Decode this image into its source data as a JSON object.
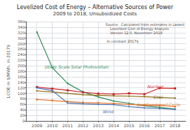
{
  "chart_data": {
    "type": "line",
    "title": "Levelized Cost of Energy – Alternative Sources of Power",
    "subtitle": "2009 to 2018, Unsubsidized Costs",
    "ylabel": "LCOE in $/MWh, in 2017$",
    "x": [
      2009,
      2010,
      2011,
      2012,
      2013,
      2014,
      2015,
      2016,
      2017,
      2018
    ],
    "series": [
      {
        "name": "Utility Scale Solar Photovoltaic",
        "color": "#2e8b57",
        "marker": "diamond",
        "values": [
          322,
          193,
          136,
          105,
          87,
          72,
          64,
          55,
          49,
          43
        ]
      },
      {
        "name": "Nuclear",
        "color": "#cc2222",
        "marker": "square",
        "values": [
          123,
          117,
          111,
          104,
          99,
          97,
          100,
          97,
          119,
          118
        ]
      },
      {
        "name": "Coal",
        "color": "#8b6914",
        "marker": "diamond",
        "values": [
          109,
          105,
          100,
          95,
          93,
          91,
          90,
          88,
          85,
          83
        ]
      },
      {
        "name": "Gas Combined Cycle",
        "color": "#e07830",
        "marker": "circle",
        "values": [
          78,
          74,
          70,
          67,
          65,
          63,
          60,
          58,
          56,
          52
        ]
      },
      {
        "name": "Wind",
        "color": "#4169b0",
        "marker": "plus",
        "values": [
          120,
          110,
          65,
          62,
          60,
          59,
          52,
          47,
          45,
          42
        ]
      }
    ],
    "xlim": [
      2008.3,
      2018.7
    ],
    "xticks": [
      2009,
      2010,
      2011,
      2012,
      2013,
      2014,
      2015,
      2016,
      2017,
      2018
    ],
    "ylim": [
      0,
      360
    ],
    "yticks": [
      0,
      20,
      40,
      60,
      80,
      100,
      120,
      140,
      160,
      180,
      200,
      220,
      240,
      260,
      280,
      300,
      320,
      340,
      360
    ],
    "grid": true,
    "annotations": [
      {
        "text": "Utility Scale Solar Photovoltaic",
        "x": 2009.5,
        "y": 197,
        "color": "#2e8b57"
      },
      {
        "text": "Nuclear",
        "x": 2016.2,
        "y": 126,
        "color": "#cc2222"
      },
      {
        "text": "Coal",
        "x": 2016.6,
        "y": 88,
        "color": "#8b6914"
      },
      {
        "text": "Gas Combined Cycle",
        "x": 2015.5,
        "y": 59,
        "color": "#e07830"
      },
      {
        "text": "Wind",
        "x": 2013.3,
        "y": 34,
        "color": "#4169b0"
      },
      {
        "text": "Source:  Calculated from estimates in Lazard\n    Levelized Cost of Energy Analysis\n    Version 12.0, November 2018\n\n In constant 2017$"
      }
    ]
  }
}
